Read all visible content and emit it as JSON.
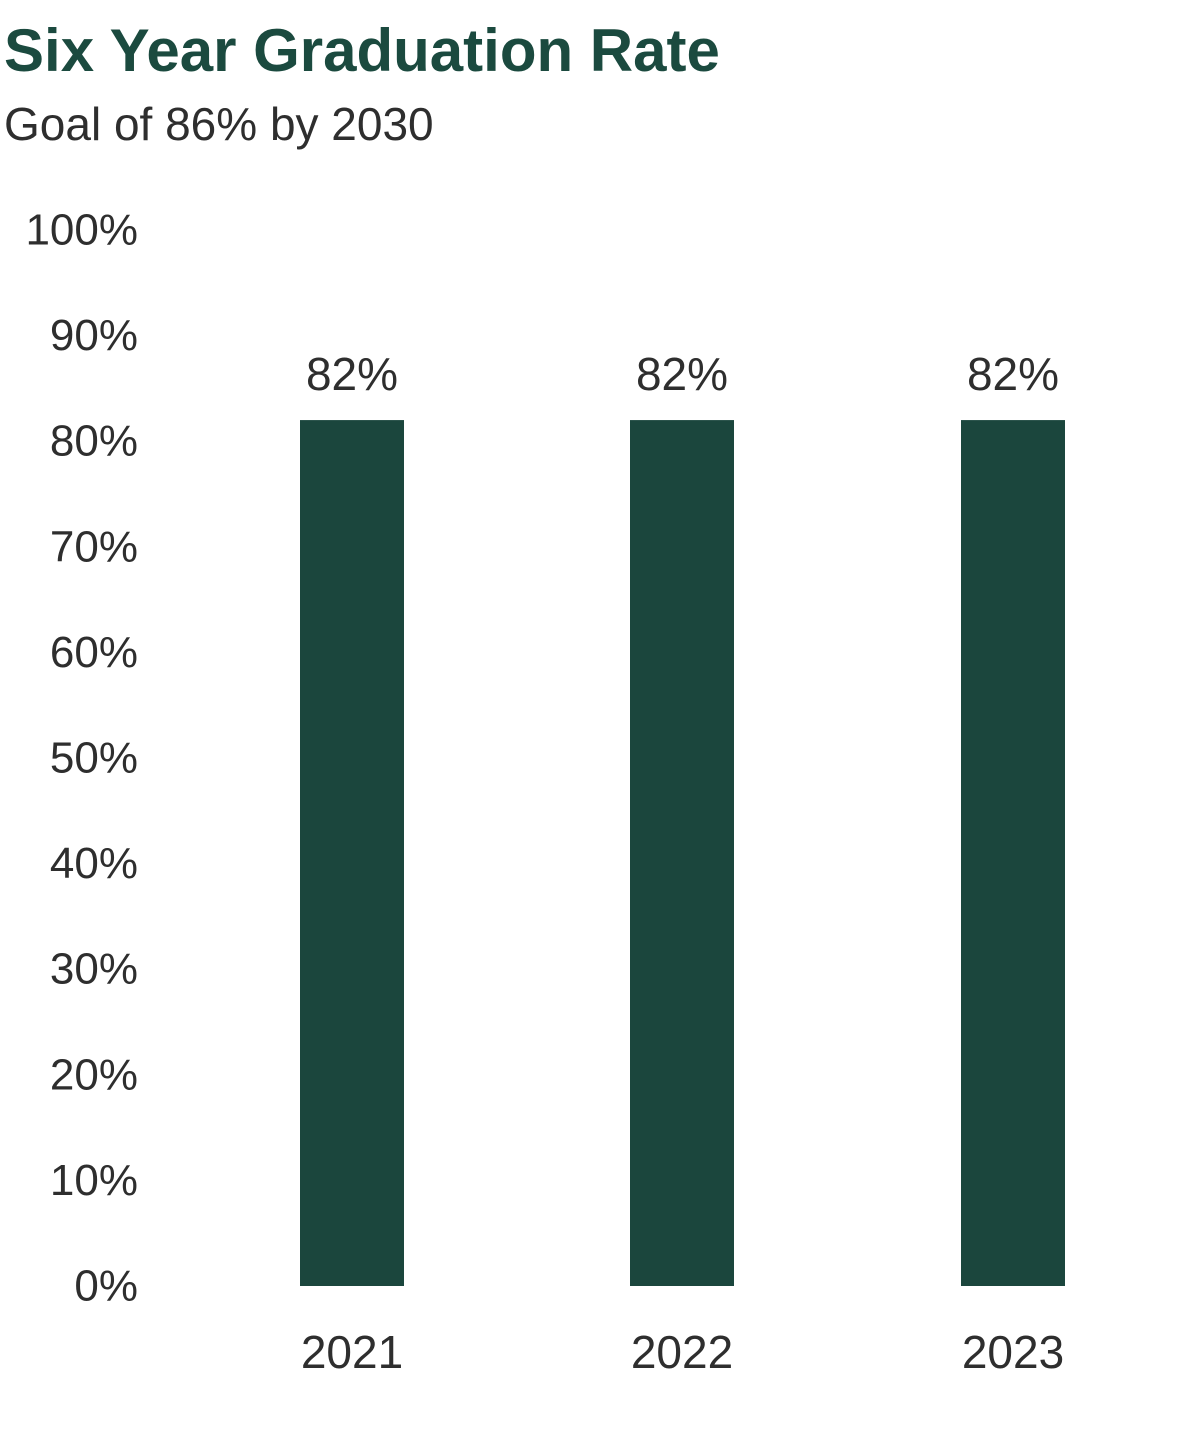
{
  "colors": {
    "title": "#1b4a3f",
    "bar": "#1b463d",
    "text": "#2e2e2e"
  },
  "chart_data": {
    "type": "bar",
    "title": "Six Year Graduation Rate",
    "subtitle": "Goal of 86% by 2030",
    "xlabel": "",
    "ylabel": "",
    "categories": [
      "2021",
      "2022",
      "2023"
    ],
    "values": [
      82,
      82,
      82
    ],
    "data_labels": [
      "82%",
      "82%",
      "82%"
    ],
    "ylim": [
      0,
      100
    ],
    "yticks": [
      0,
      10,
      20,
      30,
      40,
      50,
      60,
      70,
      80,
      90,
      100
    ],
    "ytick_labels": [
      "0%",
      "10%",
      "20%",
      "30%",
      "40%",
      "50%",
      "60%",
      "70%",
      "80%",
      "90%",
      "100%"
    ],
    "grid": false,
    "legend": "none"
  }
}
